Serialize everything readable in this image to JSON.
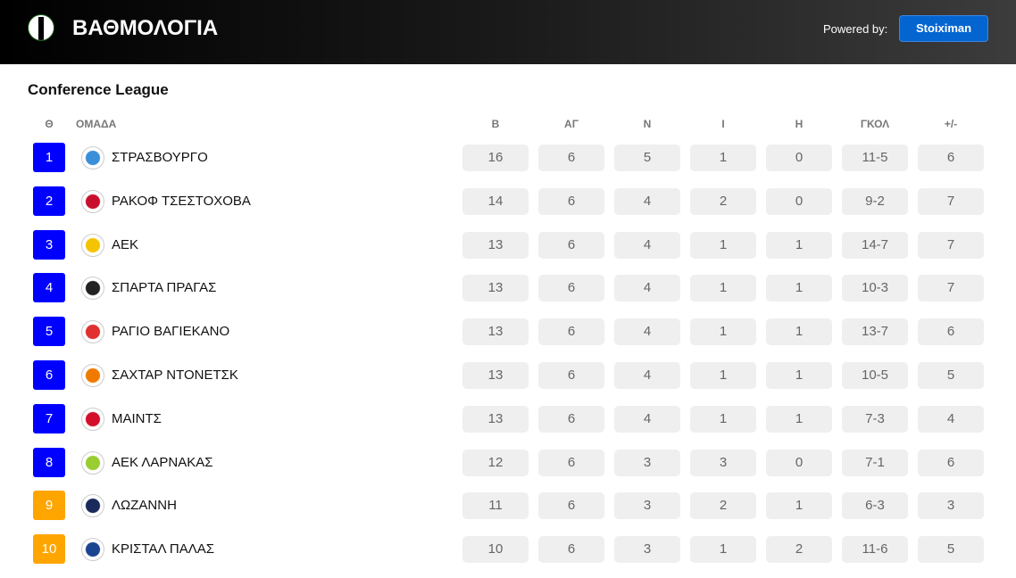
{
  "header": {
    "title": "ΒΑΘΜΟΛΟΓΙΑ",
    "powered_by": "Powered by:",
    "brand": "Stoiximan"
  },
  "league": "Conference League",
  "columns": {
    "pos": "Θ",
    "team": "ΟΜΑΔΑ",
    "stats": [
      "Β",
      "ΑΓ",
      "Ν",
      "Ι",
      "Η",
      "ΓΚΟΛ",
      "+/-"
    ]
  },
  "colors": {
    "qualify": "#0000ff",
    "playoff": "#ffa500"
  },
  "rows": [
    {
      "pos": "1",
      "team": "ΣΤΡΑΣΒΟΥΡΓΟ",
      "zone": "qualify",
      "crest": "#3a8fd8",
      "stats": [
        "16",
        "6",
        "5",
        "1",
        "0",
        "11-5",
        "6"
      ]
    },
    {
      "pos": "2",
      "team": "ΡΑΚΟΦ ΤΣΕΣΤΟΧΟΒΑ",
      "zone": "qualify",
      "crest": "#c8102e",
      "stats": [
        "14",
        "6",
        "4",
        "2",
        "0",
        "9-2",
        "7"
      ]
    },
    {
      "pos": "3",
      "team": "ΑΕΚ",
      "zone": "qualify",
      "crest": "#f4c400",
      "stats": [
        "13",
        "6",
        "4",
        "1",
        "1",
        "14-7",
        "7"
      ]
    },
    {
      "pos": "4",
      "team": "ΣΠΑΡΤΑ ΠΡΑΓΑΣ",
      "zone": "qualify",
      "crest": "#222222",
      "stats": [
        "13",
        "6",
        "4",
        "1",
        "1",
        "10-3",
        "7"
      ]
    },
    {
      "pos": "5",
      "team": "ΡΑΓΙΟ ΒΑΓΙΕΚΑΝΟ",
      "zone": "qualify",
      "crest": "#e03030",
      "stats": [
        "13",
        "6",
        "4",
        "1",
        "1",
        "13-7",
        "6"
      ]
    },
    {
      "pos": "6",
      "team": "ΣΑΧΤΑΡ ΝΤΟΝΕΤΣΚ",
      "zone": "qualify",
      "crest": "#f07a00",
      "stats": [
        "13",
        "6",
        "4",
        "1",
        "1",
        "10-5",
        "5"
      ]
    },
    {
      "pos": "7",
      "team": "ΜΑΙΝΤΣ",
      "zone": "qualify",
      "crest": "#d40f2c",
      "stats": [
        "13",
        "6",
        "4",
        "1",
        "1",
        "7-3",
        "4"
      ]
    },
    {
      "pos": "8",
      "team": "ΑΕΚ ΛΑΡΝΑΚΑΣ",
      "zone": "qualify",
      "crest": "#9acd32",
      "stats": [
        "12",
        "6",
        "3",
        "3",
        "0",
        "7-1",
        "6"
      ]
    },
    {
      "pos": "9",
      "team": "ΛΩΖΑΝΝΗ",
      "zone": "playoff",
      "crest": "#1a2a5a",
      "stats": [
        "11",
        "6",
        "3",
        "2",
        "1",
        "6-3",
        "3"
      ]
    },
    {
      "pos": "10",
      "team": "ΚΡΙΣΤΑΛ ΠΑΛΑΣ",
      "zone": "playoff",
      "crest": "#1b458f",
      "stats": [
        "10",
        "6",
        "3",
        "1",
        "2",
        "11-6",
        "5"
      ]
    }
  ]
}
